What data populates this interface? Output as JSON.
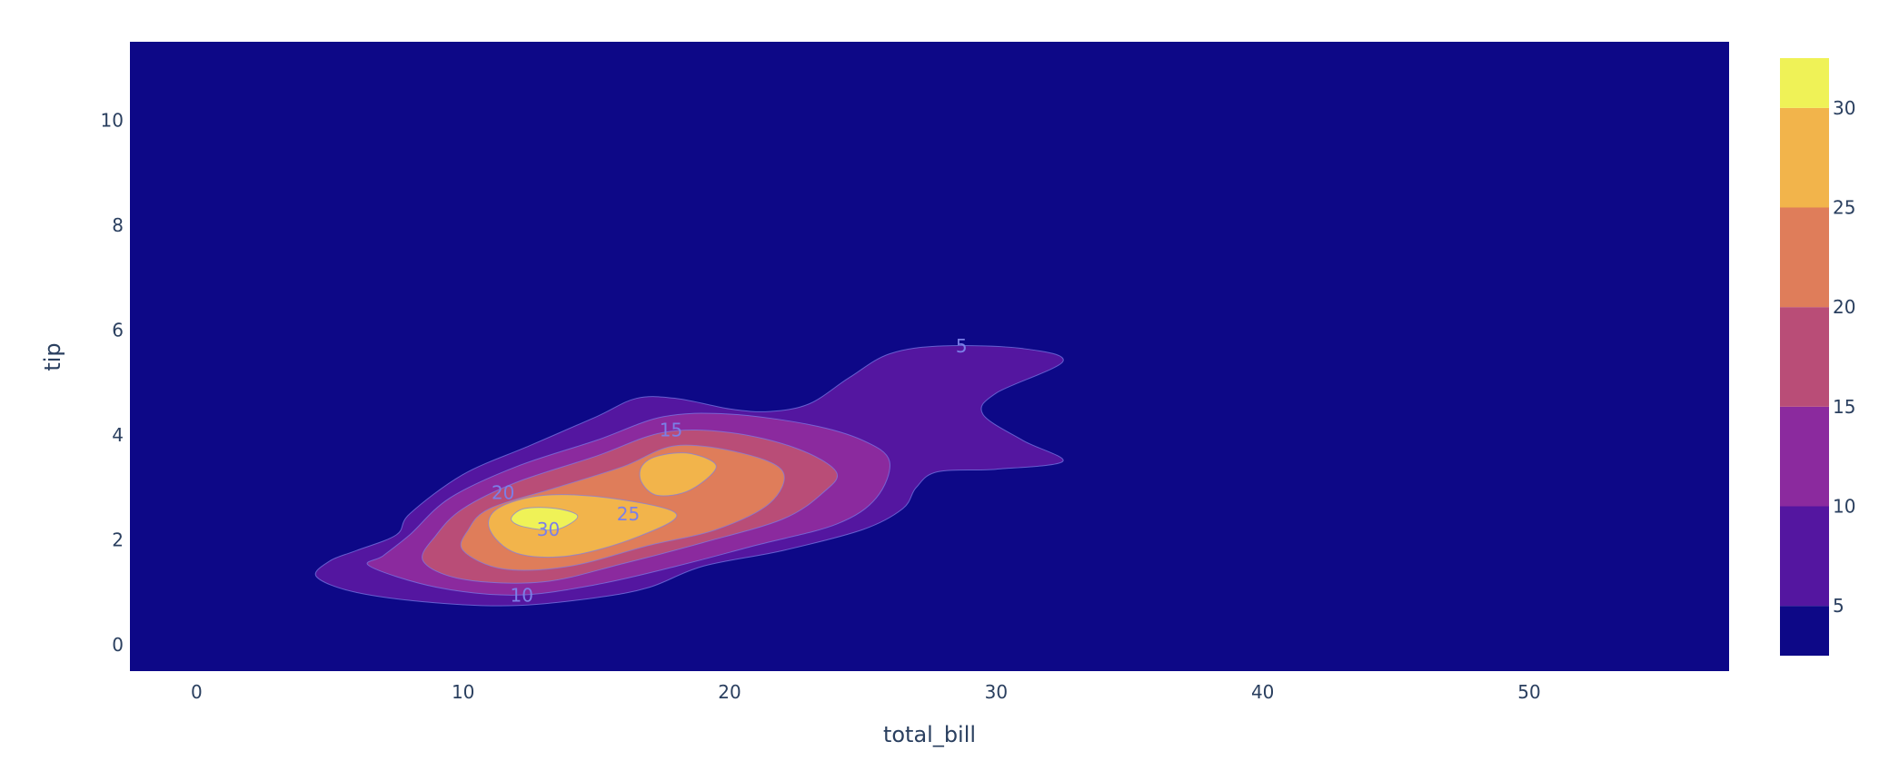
{
  "chart_data": {
    "type": "contour",
    "x_axis": {
      "label": "total_bill",
      "range": [
        -2.5,
        57.5
      ],
      "ticks": [
        0,
        10,
        20,
        30,
        40,
        50
      ]
    },
    "y_axis": {
      "label": "tip",
      "range": [
        -0.5,
        11.5
      ],
      "ticks": [
        0,
        2,
        4,
        6,
        8,
        10
      ]
    },
    "background_color": "#0d0887",
    "colorbar": {
      "range": [
        2.5,
        32.5
      ],
      "ticks": [
        5,
        10,
        15,
        20,
        25,
        30
      ],
      "bands": [
        {
          "from": 2.5,
          "to": 5,
          "color": "#0d0887"
        },
        {
          "from": 5,
          "to": 10,
          "color": "#5416a0"
        },
        {
          "from": 10,
          "to": 15,
          "color": "#8b2a9e"
        },
        {
          "from": 15,
          "to": 20,
          "color": "#b94d77"
        },
        {
          "from": 20,
          "to": 25,
          "color": "#df7d5a"
        },
        {
          "from": 25,
          "to": 30,
          "color": "#f2b44b"
        },
        {
          "from": 30,
          "to": 32.5,
          "color": "#eff257"
        }
      ]
    },
    "contours": [
      {
        "level": 5,
        "color": "#5416a0",
        "points": [
          [
            4.5,
            1.3
          ],
          [
            6,
            1.0
          ],
          [
            9,
            0.8
          ],
          [
            12,
            0.75
          ],
          [
            15,
            0.9
          ],
          [
            17,
            1.1
          ],
          [
            19,
            1.5
          ],
          [
            22,
            1.8
          ],
          [
            25,
            2.2
          ],
          [
            26.5,
            2.6
          ],
          [
            27,
            3.0
          ],
          [
            27.8,
            3.3
          ],
          [
            30,
            3.35
          ],
          [
            32.5,
            3.5
          ],
          [
            31,
            3.9
          ],
          [
            29.5,
            4.4
          ],
          [
            30,
            4.8
          ],
          [
            32.5,
            5.4
          ],
          [
            31,
            5.65
          ],
          [
            28,
            5.7
          ],
          [
            26,
            5.55
          ],
          [
            24.5,
            5.1
          ],
          [
            23,
            4.6
          ],
          [
            21.5,
            4.45
          ],
          [
            20,
            4.5
          ],
          [
            18,
            4.7
          ],
          [
            16.5,
            4.7
          ],
          [
            15,
            4.35
          ],
          [
            12.5,
            3.8
          ],
          [
            10,
            3.25
          ],
          [
            8,
            2.5
          ],
          [
            7.5,
            2.1
          ],
          [
            6,
            1.8
          ],
          [
            5,
            1.6
          ]
        ]
      },
      {
        "level": 10,
        "color": "#8b2a9e",
        "points": [
          [
            6.5,
            1.5
          ],
          [
            9,
            1.1
          ],
          [
            12,
            0.95
          ],
          [
            15,
            1.15
          ],
          [
            18,
            1.5
          ],
          [
            21,
            1.9
          ],
          [
            24,
            2.3
          ],
          [
            25.5,
            2.8
          ],
          [
            26,
            3.5
          ],
          [
            25,
            3.9
          ],
          [
            23,
            4.2
          ],
          [
            20,
            4.4
          ],
          [
            17.5,
            4.35
          ],
          [
            15,
            3.9
          ],
          [
            12,
            3.4
          ],
          [
            9.5,
            2.8
          ],
          [
            8,
            2.1
          ],
          [
            7,
            1.7
          ]
        ]
      },
      {
        "level": 15,
        "color": "#b94d77",
        "points": [
          [
            8.5,
            1.6
          ],
          [
            10,
            1.25
          ],
          [
            13,
            1.2
          ],
          [
            16,
            1.55
          ],
          [
            19,
            1.95
          ],
          [
            22,
            2.4
          ],
          [
            23.5,
            2.9
          ],
          [
            24,
            3.3
          ],
          [
            22.5,
            3.75
          ],
          [
            20,
            4.05
          ],
          [
            17.5,
            4.05
          ],
          [
            15,
            3.6
          ],
          [
            12,
            3.1
          ],
          [
            10,
            2.6
          ],
          [
            9,
            2.1
          ]
        ]
      },
      {
        "level": 20,
        "color": "#df7d5a",
        "points": [
          [
            10,
            1.8
          ],
          [
            11.5,
            1.45
          ],
          [
            14,
            1.5
          ],
          [
            17,
            1.9
          ],
          [
            19.5,
            2.2
          ],
          [
            21.5,
            2.7
          ],
          [
            22,
            3.3
          ],
          [
            20.5,
            3.65
          ],
          [
            18,
            3.8
          ],
          [
            16,
            3.4
          ],
          [
            13.5,
            3.0
          ],
          [
            11,
            2.6
          ],
          [
            10.2,
            2.2
          ]
        ]
      },
      {
        "level": 25,
        "color": "#f2b44b",
        "points": [
          [
            11,
            2.2
          ],
          [
            12,
            1.75
          ],
          [
            14,
            1.7
          ],
          [
            16.5,
            2.05
          ],
          [
            18,
            2.5
          ],
          [
            15.5,
            2.8
          ],
          [
            13,
            2.85
          ],
          [
            11.3,
            2.6
          ]
        ]
      },
      {
        "level": 25,
        "color": "#f2b44b",
        "points": [
          [
            16.7,
            3.4
          ],
          [
            17.3,
            3.6
          ],
          [
            18.5,
            3.65
          ],
          [
            19.5,
            3.4
          ],
          [
            18.5,
            2.95
          ],
          [
            17.3,
            2.85
          ],
          [
            16.7,
            3.1
          ]
        ]
      },
      {
        "level": 30,
        "color": "#eff257",
        "points": [
          [
            11.8,
            2.4
          ],
          [
            12.3,
            2.25
          ],
          [
            13.5,
            2.2
          ],
          [
            14.3,
            2.45
          ],
          [
            13.5,
            2.6
          ],
          [
            12.3,
            2.6
          ]
        ]
      }
    ],
    "contour_labels": [
      {
        "text": "5",
        "x": 28.7,
        "y": 5.7
      },
      {
        "text": "15",
        "x": 17.8,
        "y": 4.1
      },
      {
        "text": "20",
        "x": 11.5,
        "y": 2.9
      },
      {
        "text": "25",
        "x": 16.2,
        "y": 2.5
      },
      {
        "text": "30",
        "x": 13.2,
        "y": 2.2
      },
      {
        "text": "10",
        "x": 12.2,
        "y": 0.95
      }
    ]
  }
}
